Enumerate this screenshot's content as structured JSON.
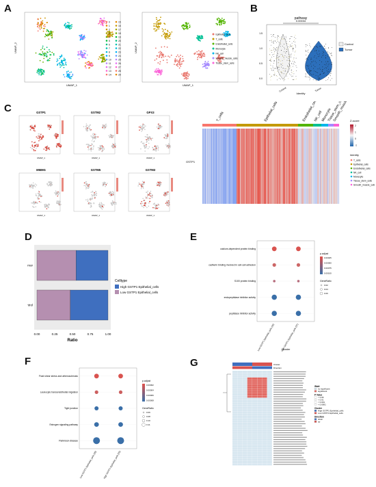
{
  "figure": {
    "panel_letters": [
      "A",
      "B",
      "C",
      "D",
      "E",
      "F",
      "G"
    ]
  },
  "panel_a": {
    "xlabel": "UMAP_1",
    "ylabel": "UMAP_2",
    "cluster_legend": [
      "0",
      "1",
      "2",
      "3",
      "4",
      "5",
      "6",
      "7",
      "8",
      "9",
      "10",
      "11",
      "12",
      "13",
      "14",
      "15",
      "16",
      "17",
      "18",
      "19",
      "20",
      "21",
      "22",
      "23",
      "24",
      "25",
      "26",
      "27",
      "28",
      "29",
      "30"
    ],
    "celltype_legend": [
      "Epithelial_cells",
      "T_cells",
      "Endothelial_cells",
      "Monocyte",
      "NK_cell",
      "Smooth_muscle_cells",
      "Tissue_stem_cells"
    ],
    "celltype_colors": [
      "#e8766d",
      "#c49a00",
      "#53b400",
      "#00c094",
      "#00b6eb",
      "#a58aff",
      "#fb61d7"
    ]
  },
  "panel_b": {
    "title": "pathway",
    "pvalue": "0.00034",
    "xlabel": "Identity",
    "categories": [
      "Control",
      "Tumor"
    ],
    "legend": [
      "Control",
      "Tumor"
    ],
    "colors": [
      "#f0f0f0",
      "#2c6fbb"
    ]
  },
  "panel_c": {
    "genes": [
      "GSTP1",
      "GSTM2",
      "GPX3",
      "MMMG",
      "GSTM5",
      "GSTM3"
    ],
    "xlabel": "UMAP_1",
    "ylabel": "UMAP_2",
    "scale_ticks": [
      "0.00",
      "0.25",
      "0.50",
      "0.75",
      "1.00"
    ],
    "heatmap_columns": [
      "T_cells",
      "Epithelial_cells",
      "Endothelial_cells",
      "NK_cell",
      "Monocyte",
      "Tissue_stem_cells",
      "Smooth_muscle_cells"
    ],
    "heatmap_row": "GSTP1",
    "zscore_label": "Z-score",
    "zscore_ticks": [
      "2",
      "1",
      "0",
      "-1"
    ],
    "identity_label": "Identity",
    "identity_items": [
      "T_cells",
      "Epithelial_cells",
      "Endothelial_cells",
      "NK_cell",
      "Monocyte",
      "Tissue_stem_cells",
      "Smooth_muscle_cells"
    ]
  },
  "chart_data": [
    {
      "panel": "D",
      "type": "bar",
      "orientation": "horizontal-stacked",
      "categories": [
        "Tumor",
        "Control"
      ],
      "series": [
        {
          "name": "Low GSTP1 Epithelial_cells",
          "values": [
            0.55,
            0.47
          ],
          "color": "#b58fb0"
        },
        {
          "name": "High GSTP1 Epithelial_cells",
          "values": [
            0.45,
            0.53
          ],
          "color": "#3f6fbf"
        }
      ],
      "xlabel": "Ratio",
      "ylabel": "Type",
      "xlim": [
        0,
        1
      ],
      "xticks": [
        "0.00",
        "0.25",
        "0.50",
        "0.75",
        "1.00"
      ],
      "legend_title": "Celltype",
      "legend_items": [
        "High GSTP1 Epithelial_cells",
        "Low GSTP1 Epithelial_cells"
      ],
      "legend_colors": [
        "#3f6fbf",
        "#b58fb0"
      ]
    },
    {
      "panel": "E",
      "type": "scatter",
      "terms": [
        "calcium-dependent protein binding",
        "cadherin binding involved in cell-cell adhesion",
        "S100 protein binding",
        "endopeptidase inhibitor activity",
        "peptidase inhibitor activity"
      ],
      "x": [
        "Low GSTP1 Epithelial_cells (34)",
        "High GSTP1 Epithelial_cells (37)"
      ],
      "xlabel": "Cluster",
      "sizes": [
        [
          0.06,
          0.06
        ],
        [
          0.04,
          0.04
        ],
        [
          0.02,
          0.02
        ],
        [
          0.07,
          0.07
        ],
        [
          0.07,
          0.07
        ]
      ],
      "colors": [
        "#d9534f",
        "#cc6666",
        "#b56a7a",
        "#3a6fa8",
        "#3a6fa8"
      ],
      "padj_label": "p.adjust",
      "padj_ticks": [
        "0.00025",
        "0.00050",
        "0.00075",
        "0.00100"
      ],
      "size_label": "GeneRatio",
      "size_ticks": [
        "0.02",
        "0.04",
        "0.06"
      ]
    },
    {
      "panel": "F",
      "type": "scatter",
      "terms": [
        "Fluid shear stress and atherosclerosis",
        "Leukocyte transendothelial migration",
        "Tight junction",
        "Estrogen signaling pathway",
        "Parkinson disease"
      ],
      "x": [
        "Low GSTP1 Epithelial_cells (30)",
        "High GSTP1 Epithelial_cells (29)"
      ],
      "sizes": [
        [
          0.06,
          0.06
        ],
        [
          0.04,
          0.04
        ],
        [
          0.05,
          0.05
        ],
        [
          0.06,
          0.06
        ],
        [
          0.1,
          0.1
        ]
      ],
      "colors": [
        "#d9534f",
        "#cc5f5f",
        "#3a6fa8",
        "#3a6fa8",
        "#3a6fa8"
      ],
      "padj_label": "p.adjust",
      "padj_ticks": [
        "0.00002",
        "0.00004",
        "0.00006",
        "0.00008"
      ],
      "size_label": "GeneRatio",
      "size_ticks": [
        "0.06",
        "0.08",
        "0.10",
        "0.11"
      ]
    }
  ],
  "panel_g": {
    "top_labels": [
      "Cluster",
      "Direction"
    ],
    "legend_groups": [
      {
        "title": "Wald",
        "items": [
          "no significant",
          "significant"
        ]
      },
      {
        "title": "P Value",
        "items": [
          "< 0.05",
          "< 0.01",
          "< 0.001",
          "< 0.0001"
        ]
      },
      {
        "title": "Cluster",
        "items": [
          "High GSTP1 Epithelial_cells",
          "Low GSTP1 Epithelial_cells"
        ]
      },
      {
        "title": "Direction",
        "items": [
          "down",
          "up"
        ]
      }
    ]
  }
}
